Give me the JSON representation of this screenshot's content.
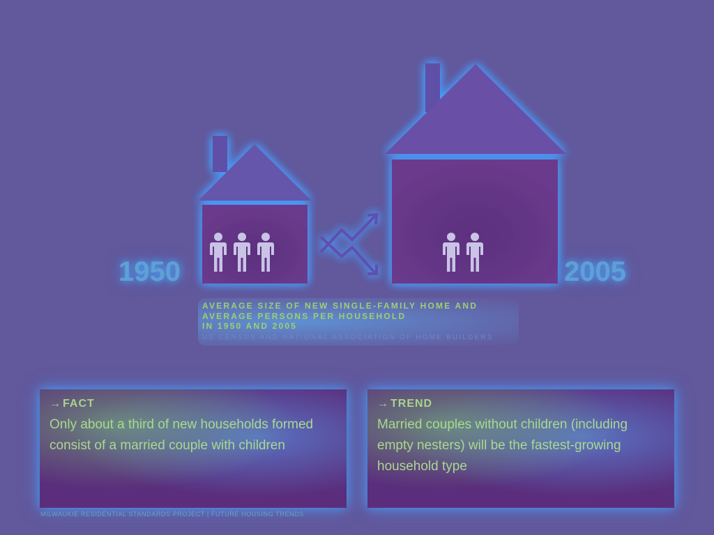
{
  "figure": {
    "year_left": "1950",
    "year_right": "2005",
    "caption_lines": [
      "AVERAGE SIZE OF NEW SINGLE-FAMILY HOME AND",
      "AVERAGE PERSONS PER HOUSEHOLD",
      "IN 1950 AND 2005"
    ],
    "source": "US CENSUS AND NATIONAL ASSOCIATION OF HOME BUILDERS",
    "persons_1950": 3.5,
    "persons_2005": 2.5,
    "icons": {
      "small_house": "house-icon",
      "large_house": "house-icon",
      "person": "person-icon",
      "trend": "crossing-trend-arrows-icon"
    }
  },
  "panels": {
    "fact": {
      "arrow": "→",
      "heading": "FACT",
      "body": "Only about a third of new households formed consist of a married couple with children"
    },
    "trend": {
      "arrow": "→",
      "heading": "TREND",
      "body": "Married couples without children (including empty nesters) will be the fastest-growing household type"
    }
  },
  "footer": "MILWAUKIE RESIDENTIAL STANDARDS PROJECT | FUTURE HOUSING TRENDS",
  "colors": {
    "background": "#62589c",
    "house_fill": "#5a2e7c",
    "glow": "#46a0ff",
    "text_green": "#a9d98e",
    "year_blue": "#5fa0d6"
  }
}
